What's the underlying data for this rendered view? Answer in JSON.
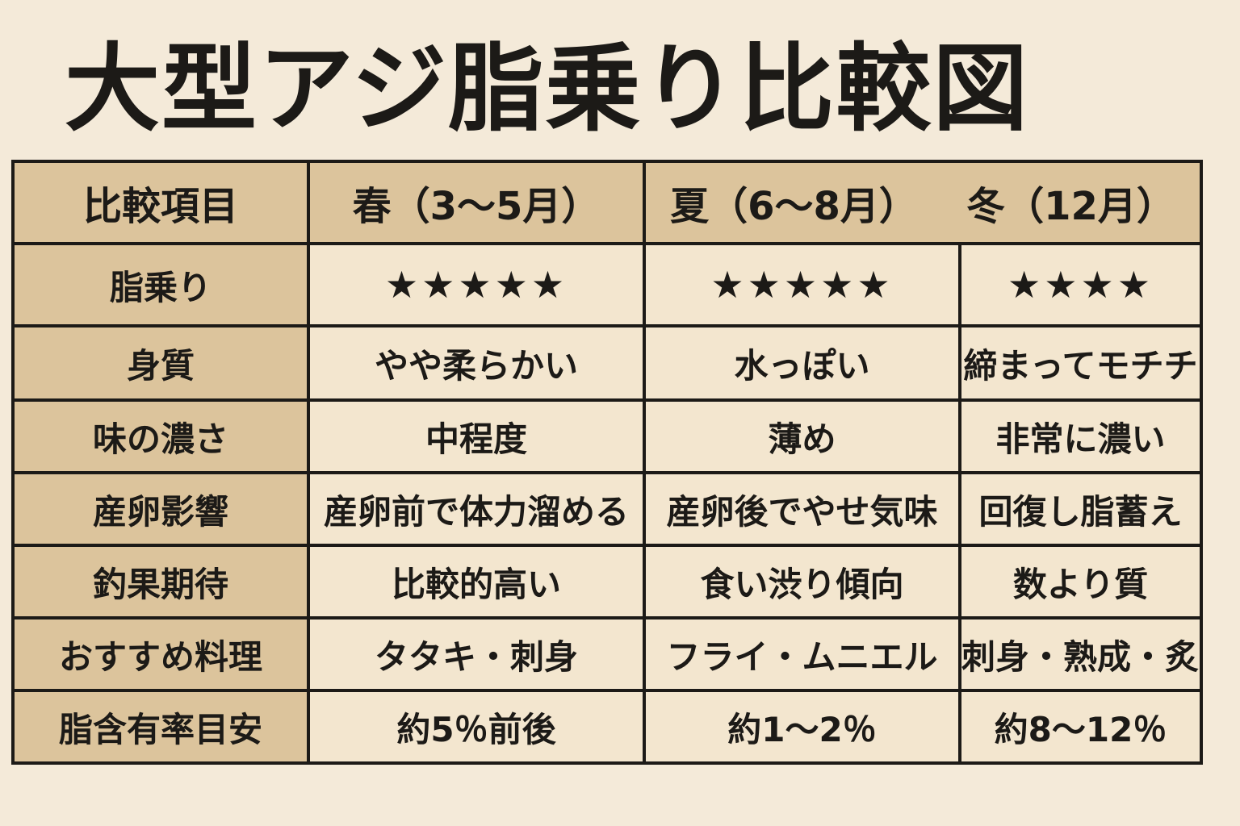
{
  "title": "大型アジ脂乗り比較図",
  "colors": {
    "header_bg": "#dcc49c",
    "cell_bg": "#f3e6cf",
    "page_bg": "#f4ead9",
    "border": "#1c1a17"
  },
  "header": [
    "比較項目",
    "春（3〜5月）",
    "夏（6〜8月）",
    "冬（12月）"
  ],
  "rows": [
    {
      "label": "脂乗り",
      "cells": [
        "★★★★★",
        "★★★★★",
        "★★★★"
      ],
      "ratings": [
        5,
        5,
        4
      ]
    },
    {
      "label": "身質",
      "cells": [
        "やや柔らかい",
        "水っぽい",
        "締まってモチチ"
      ]
    },
    {
      "label": "味の濃さ",
      "cells": [
        "中程度",
        "薄め",
        "非常に濃い"
      ]
    },
    {
      "label": "産卵影響",
      "cells": [
        "産卵前で体力溜める",
        "産卵後でやせ気味",
        "回復し脂蓄え"
      ]
    },
    {
      "label": "釣果期待",
      "cells": [
        "比較的高い",
        "食い渋り傾向",
        "数より質"
      ]
    },
    {
      "label": "おすすめ料理",
      "cells": [
        "タタキ・刺身",
        "フライ・ムニエル",
        "刺身・熟成・炙り"
      ]
    },
    {
      "label": "脂含有率目安",
      "cells": [
        "約5％前後",
        "約1〜2％",
        "約8〜12％"
      ]
    }
  ]
}
